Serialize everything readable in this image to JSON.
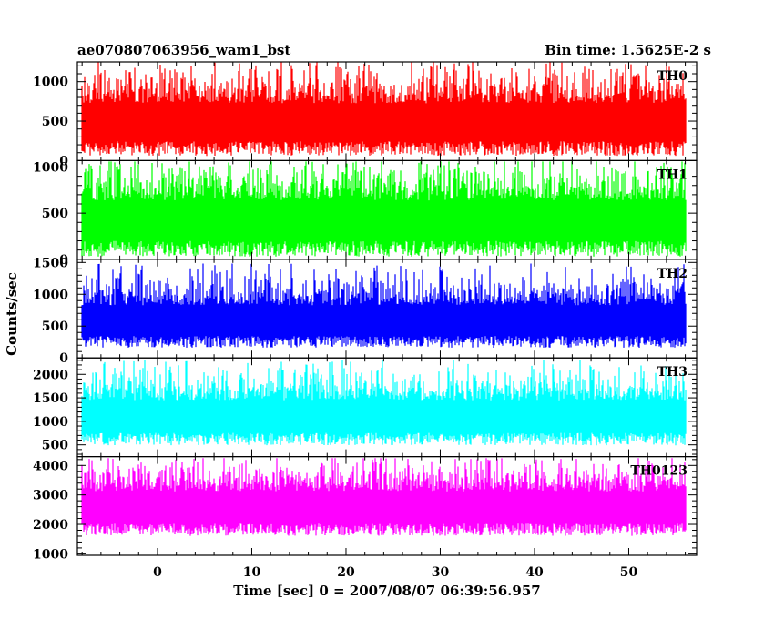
{
  "chart_data": {
    "type": "line",
    "title_left": "ae070807063956_wam1_bst",
    "title_right": "Bin time: 1.5625E-2 s",
    "xlabel": "Time [sec] 0 = 2007/08/07 06:39:56.957",
    "ylabel": "Counts/sec",
    "xlim": [
      -8.5,
      57.2
    ],
    "data_x_range": [
      -8.0,
      56.0
    ],
    "xticks": [
      0,
      10,
      20,
      30,
      40,
      50
    ],
    "grid": false,
    "panels": [
      {
        "name": "TH0",
        "color": "#ff0000",
        "ylim": [
          0,
          1250
        ],
        "yticks": [
          0,
          500,
          1000
        ],
        "baseline": 0,
        "low": 0,
        "center": 520,
        "spread": 230,
        "peak": 1250
      },
      {
        "name": "TH1",
        "color": "#00ff00",
        "ylim": [
          0,
          1070
        ],
        "yticks": [
          0,
          500,
          1000
        ],
        "baseline": 0,
        "low": 20,
        "center": 450,
        "spread": 210,
        "peak": 1060
      },
      {
        "name": "TH2",
        "color": "#0000ff",
        "ylim": [
          0,
          1550
        ],
        "yticks": [
          0,
          500,
          1000,
          1500
        ],
        "baseline": 0,
        "low": 20,
        "center": 620,
        "spread": 230,
        "peak": 1500
      },
      {
        "name": "TH3",
        "color": "#00ffff",
        "ylim": [
          250,
          2350
        ],
        "yticks": [
          500,
          1000,
          1500,
          2000
        ],
        "baseline": 250,
        "low": 300,
        "center": 1150,
        "spread": 330,
        "peak": 2300
      },
      {
        "name": "TH0123",
        "color": "#ff00ff",
        "ylim": [
          950,
          4300
        ],
        "yticks": [
          1000,
          2000,
          3000,
          4000
        ],
        "baseline": 950,
        "low": 900,
        "center": 2650,
        "spread": 520,
        "peak": 4250
      }
    ]
  }
}
